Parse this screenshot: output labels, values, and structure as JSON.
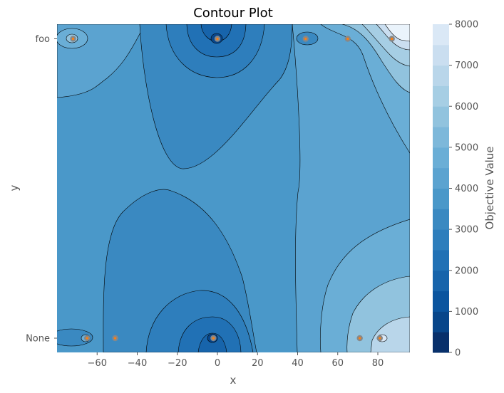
{
  "chart_data": {
    "type": "contour",
    "title": "Contour Plot",
    "xlabel": "x",
    "ylabel": "y",
    "xlim": [
      -80,
      96
    ],
    "x_ticks": [
      -60,
      -40,
      -20,
      0,
      20,
      40,
      60,
      80
    ],
    "y_categories": [
      "None",
      "foo"
    ],
    "colorbar": {
      "label": "Objective Value",
      "range": [
        0,
        8000
      ],
      "ticks": [
        0,
        1000,
        2000,
        3000,
        4000,
        5000,
        6000,
        7000,
        8000
      ],
      "levels": 16,
      "colormap": "Blues_r"
    },
    "colors": {
      "level_colors": [
        "#08306b",
        "#08468a",
        "#0b559f",
        "#1764ab",
        "#2171b5",
        "#2e7ebc",
        "#3a89c1",
        "#4a98c9",
        "#5ba3d0",
        "#6aaed6",
        "#7db8da",
        "#91c3de",
        "#a6cee4",
        "#b9d6ea",
        "#cadef0",
        "#dae8f6",
        "#eaf3fb",
        "#f7fbff"
      ],
      "point_fill": "#ff7f0e",
      "point_edge": "#888888"
    },
    "points": [
      {
        "x": -72,
        "y": "foo"
      },
      {
        "x": 0,
        "y": "foo"
      },
      {
        "x": 44,
        "y": "foo"
      },
      {
        "x": 65,
        "y": "foo"
      },
      {
        "x": 87,
        "y": "foo"
      },
      {
        "x": -65,
        "y": "None"
      },
      {
        "x": -51,
        "y": "None"
      },
      {
        "x": -2,
        "y": "None"
      },
      {
        "x": 71,
        "y": "None"
      },
      {
        "x": 81,
        "y": "None"
      }
    ]
  }
}
